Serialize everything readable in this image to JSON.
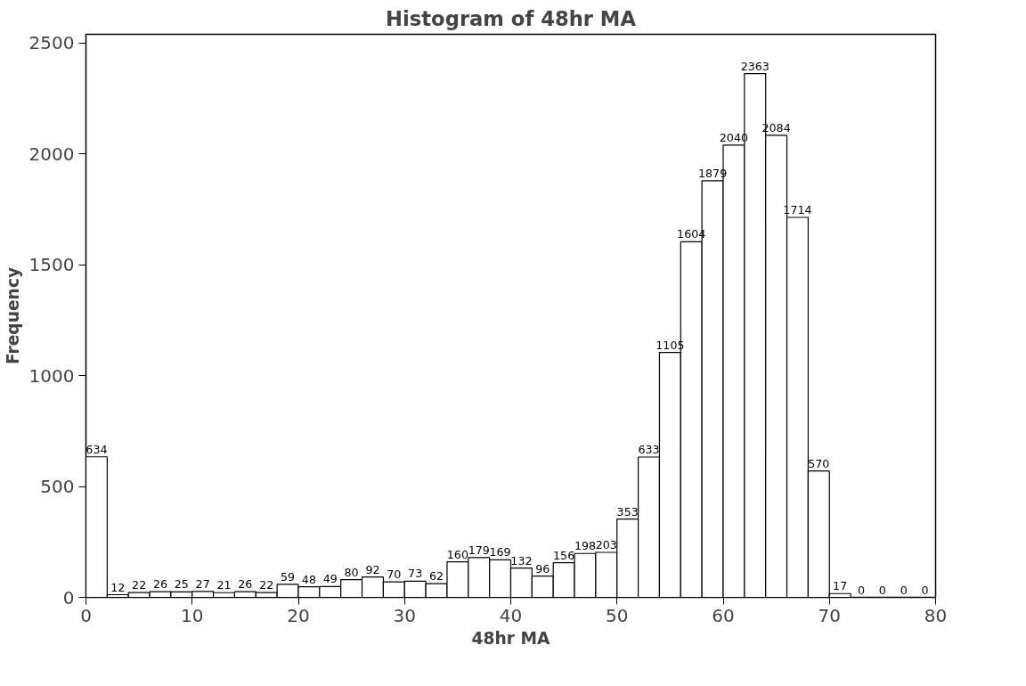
{
  "chart_data": {
    "type": "histogram",
    "title": "Histogram of 48hr MA",
    "xlabel": "48hr MA",
    "ylabel": "Frequency",
    "bins": [
      0,
      2,
      4,
      6,
      8,
      10,
      12,
      14,
      16,
      18,
      20,
      22,
      24,
      26,
      28,
      30,
      32,
      34,
      36,
      38,
      40,
      42,
      44,
      46,
      48,
      50,
      52,
      54,
      56,
      58,
      60,
      62,
      64,
      66,
      68,
      70,
      72,
      74,
      76,
      78,
      80
    ],
    "values": [
      634,
      12,
      22,
      26,
      25,
      27,
      21,
      26,
      22,
      59,
      48,
      49,
      80,
      92,
      70,
      73,
      62,
      160,
      179,
      169,
      132,
      96,
      156,
      198,
      203,
      353,
      633,
      1105,
      1604,
      1879,
      2040,
      2363,
      2084,
      1714,
      570,
      17,
      0,
      0,
      0,
      0
    ],
    "color": "#ffffff",
    "data_labels": true,
    "grid": false,
    "xlim": [
      0,
      80
    ],
    "xticks": [
      0,
      10,
      20,
      30,
      40,
      50,
      60,
      70,
      80
    ],
    "ylim": [
      0,
      2540
    ],
    "yticks": [
      0,
      500,
      1000,
      1500,
      2000,
      2500
    ]
  }
}
